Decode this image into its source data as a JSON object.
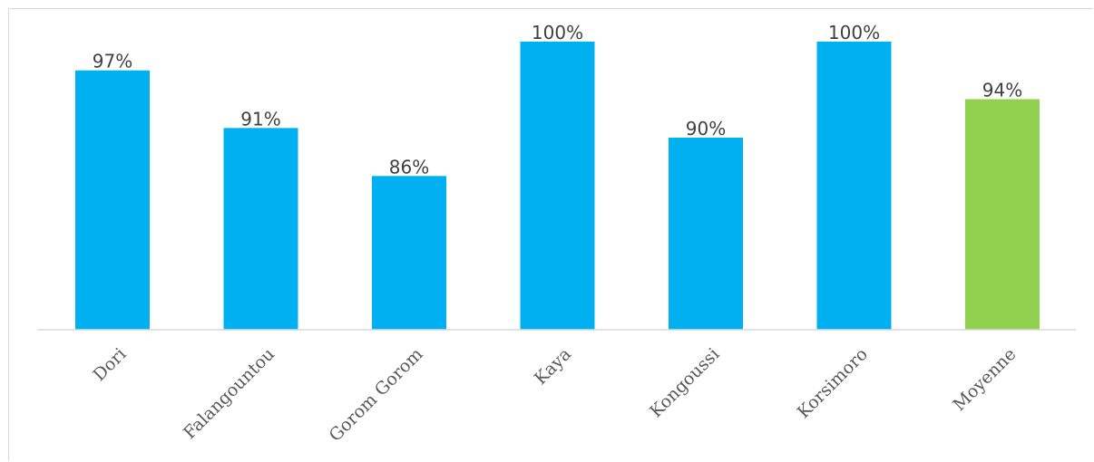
{
  "chart_data": {
    "type": "bar",
    "title": "",
    "xlabel": "",
    "ylabel": "",
    "ylim": [
      70,
      101.5
    ],
    "grid": false,
    "legend": "none",
    "value_suffix": "%",
    "categories": [
      "Dori",
      "Falangountou",
      "Gorom Gorom",
      "Kaya",
      "Kongoussi",
      "Korsimoro",
      "Moyenne"
    ],
    "values": [
      97,
      91,
      86,
      100,
      90,
      100,
      94
    ],
    "colors": {
      "bar": "#00b0f0",
      "average_bar": "#92d050",
      "axis": "#d9d9d9"
    },
    "highlight_category": "Moyenne"
  }
}
